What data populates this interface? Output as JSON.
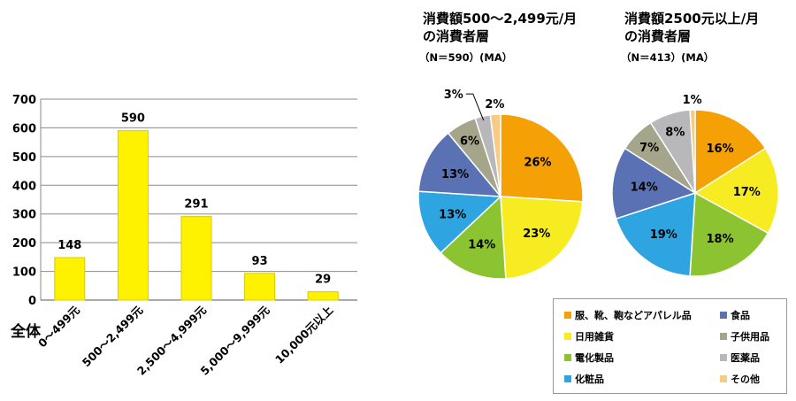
{
  "colors": {
    "bar_fill": "#FFF200",
    "bar_stroke": "#D6CC00",
    "grid": "#8A8A8A"
  },
  "chart_data": [
    {
      "type": "bar",
      "row_label": "全体",
      "categories": [
        "0～499元",
        "500～2,499元",
        "2,500～4,999元",
        "5,000～9,999元",
        "10,000元以上"
      ],
      "values": [
        148,
        590,
        291,
        93,
        29
      ],
      "data_labels": [
        "148",
        "590",
        "291",
        "93",
        "29"
      ],
      "y_ticks": [
        "0",
        "100",
        "200",
        "300",
        "400",
        "500",
        "600",
        "700"
      ],
      "ylim": [
        0,
        700
      ],
      "grid": true
    },
    {
      "type": "pie",
      "title_lines": [
        "消費額500～2,499元/月",
        "の消費者層"
      ],
      "subtitle": "（N＝590）(MA）",
      "slices": [
        {
          "name": "服、靴、鞄などアパレル品",
          "value": 26,
          "label": "26%",
          "color": "#F5A005"
        },
        {
          "name": "日用雑貨",
          "value": 23,
          "label": "23%",
          "color": "#F7EC22"
        },
        {
          "name": "電化製品",
          "value": 14,
          "label": "14%",
          "color": "#8CC431"
        },
        {
          "name": "化粧品",
          "value": 13,
          "label": "13%",
          "color": "#2EA5E1"
        },
        {
          "name": "食品",
          "value": 13,
          "label": "13%",
          "color": "#5A72B3"
        },
        {
          "name": "子供用品",
          "value": 6,
          "label": "6%",
          "color": "#A4A58A"
        },
        {
          "name": "医薬品",
          "value": 3,
          "label": "3%",
          "color": "#B8B8BA"
        },
        {
          "name": "その他",
          "value": 2,
          "label": "2%",
          "color": "#F7CB85"
        }
      ]
    },
    {
      "type": "pie",
      "title_lines": [
        "消費額2500元以上/月",
        "の消費者層"
      ],
      "subtitle": "（N＝413）(MA）",
      "slices": [
        {
          "name": "服、靴、鞄などアパレル品",
          "value": 16,
          "label": "16%",
          "color": "#F5A005"
        },
        {
          "name": "日用雑貨",
          "value": 17,
          "label": "17%",
          "color": "#F7EC22"
        },
        {
          "name": "電化製品",
          "value": 18,
          "label": "18%",
          "color": "#8CC431"
        },
        {
          "name": "化粧品",
          "value": 19,
          "label": "19%",
          "color": "#2EA5E1"
        },
        {
          "name": "食品",
          "value": 14,
          "label": "14%",
          "color": "#5A72B3"
        },
        {
          "name": "子供用品",
          "value": 7,
          "label": "7%",
          "color": "#A4A58A"
        },
        {
          "name": "医薬品",
          "value": 8,
          "label": "8%",
          "color": "#B8B8BA"
        },
        {
          "name": "その他",
          "value": 1,
          "label": "1%",
          "color": "#F7CB85"
        }
      ]
    }
  ],
  "legend": {
    "placement": "bottom-right",
    "items": [
      {
        "label": "服、靴、鞄などアパレル品",
        "color": "#F5A005"
      },
      {
        "label": "食品",
        "color": "#5A72B3"
      },
      {
        "label": "日用雑貨",
        "color": "#F7EC22"
      },
      {
        "label": "子供用品",
        "color": "#A4A58A"
      },
      {
        "label": "電化製品",
        "color": "#8CC431"
      },
      {
        "label": "医薬品",
        "color": "#B8B8BA"
      },
      {
        "label": "化粧品",
        "color": "#2EA5E1"
      },
      {
        "label": "その他",
        "color": "#F7CB85"
      }
    ]
  }
}
